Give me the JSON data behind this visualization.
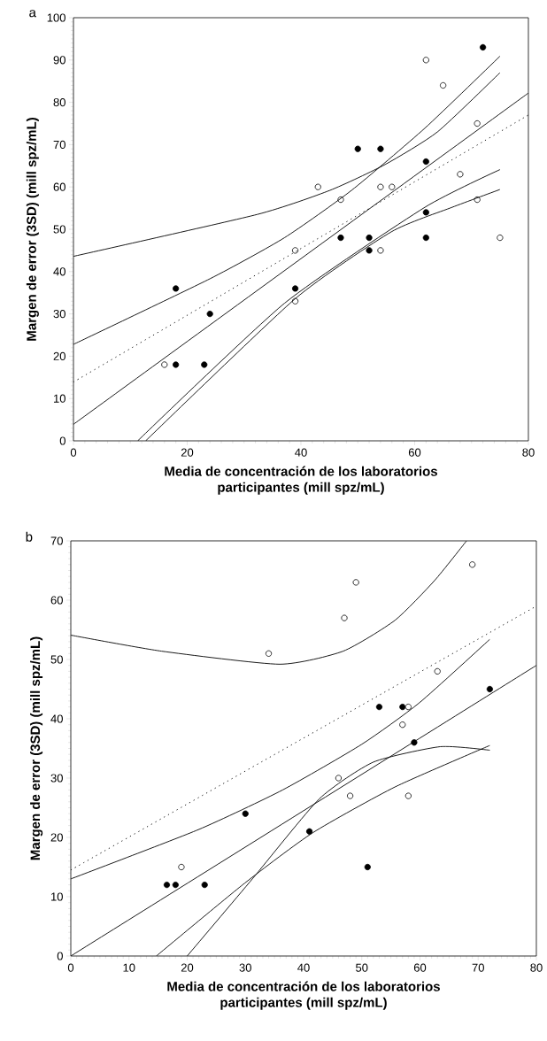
{
  "chart_data": [
    {
      "type": "scatter",
      "annotations": [
        "a"
      ],
      "xlabel": "Media de concentración de los laboratorios participantes (mill spz/mL)",
      "ylabel": "Margen de error (3SD) (mill spz/mL)",
      "xlim": [
        0,
        80
      ],
      "ylim": [
        0,
        100
      ],
      "xticks": [
        0,
        20,
        40,
        60,
        80
      ],
      "yticks": [
        0,
        10,
        20,
        30,
        40,
        50,
        60,
        70,
        80,
        90,
        100
      ],
      "marker": "circle",
      "series": [
        {
          "color": "#000000",
          "x": [
            18,
            18,
            23,
            24,
            39,
            47,
            50,
            52,
            52,
            54,
            62,
            62,
            62,
            72
          ],
          "values": [
            36,
            18,
            18,
            30,
            36,
            48,
            69,
            48,
            45,
            69,
            66,
            54,
            48,
            93
          ]
        },
        {
          "color": "#ffffff",
          "x": [
            16,
            39,
            39,
            43,
            47,
            54,
            54,
            56,
            62,
            65,
            68,
            71,
            71,
            75
          ],
          "values": [
            18,
            33,
            45,
            60,
            57,
            60,
            45,
            60,
            90,
            84,
            63,
            75,
            57,
            48
          ]
        },
        {
          "type": "line",
          "color": "#000000",
          "marker": "none",
          "line_style": "solid",
          "x": [
            0,
            32.3,
            45.1,
            54.8,
            64,
            75
          ],
          "values": [
            43.6,
            53.5,
            59.2,
            65.3,
            73,
            87
          ]
        },
        {
          "type": "line",
          "color": "#000000",
          "marker": "none",
          "line_style": "solid",
          "x": [
            0,
            24,
            37.1,
            48.9,
            61.8,
            75
          ],
          "values": [
            22.8,
            38.3,
            48,
            59.2,
            73.9,
            90.9
          ]
        },
        {
          "type": "line",
          "color": "#000000",
          "marker": "none",
          "line_style": "solid",
          "x": [
            0,
            80
          ],
          "values": [
            3.9,
            82.2
          ]
        },
        {
          "type": "line",
          "color": "#000000",
          "marker": "none",
          "line_style": "dotted",
          "x": [
            0,
            80
          ],
          "values": [
            13.9,
            77
          ]
        },
        {
          "type": "line",
          "color": "#000000",
          "marker": "none",
          "line_style": "solid",
          "x": [
            11.3,
            37.1,
            61.8,
            75
          ],
          "values": [
            0,
            32.5,
            55.2,
            64.1
          ]
        },
        {
          "type": "line",
          "color": "#000000",
          "marker": "none",
          "line_style": "solid",
          "x": [
            12.7,
            39,
            55.9,
            66.6,
            75
          ],
          "values": [
            0,
            33.6,
            49.4,
            55.2,
            59.4
          ]
        }
      ]
    },
    {
      "type": "scatter",
      "annotations": [
        "b"
      ],
      "xlabel": "Media de concentración de los laboratorios participantes (mill spz/mL)",
      "ylabel": "Margen de error (3SD) (mill spz/mL)",
      "xlim": [
        0,
        80
      ],
      "ylim": [
        0,
        70
      ],
      "xticks": [
        0,
        10,
        20,
        30,
        40,
        50,
        60,
        70,
        80
      ],
      "yticks": [
        0,
        10,
        20,
        30,
        40,
        50,
        60,
        70
      ],
      "marker": "circle",
      "series": [
        {
          "color": "#000000",
          "x": [
            16.5,
            18,
            23,
            30,
            41,
            51,
            53,
            57,
            59,
            72
          ],
          "values": [
            12,
            12,
            12,
            24,
            21,
            15,
            42,
            42,
            36,
            45
          ]
        },
        {
          "color": "#ffffff",
          "x": [
            19,
            34,
            46,
            47,
            48,
            49,
            57,
            58,
            58,
            63,
            69
          ],
          "values": [
            15,
            51,
            30,
            57,
            27,
            63,
            39,
            42,
            27,
            48,
            66
          ]
        },
        {
          "type": "line",
          "color": "#000000",
          "marker": "none",
          "line_style": "solid",
          "x": [
            0,
            15.6,
            35.9,
            46.8,
            55.7,
            62.5,
            68
          ],
          "values": [
            54.1,
            51.4,
            49.2,
            51.4,
            56.6,
            63.3,
            70
          ]
        },
        {
          "type": "line",
          "color": "#000000",
          "marker": "none",
          "line_style": "dotted",
          "x": [
            0,
            80
          ],
          "values": [
            14.5,
            59
          ]
        },
        {
          "type": "line",
          "color": "#000000",
          "marker": "none",
          "line_style": "solid",
          "x": [
            0,
            21.9,
            36.4,
            50,
            59.9,
            72
          ],
          "values": [
            13,
            21.3,
            28,
            35.7,
            42.7,
            53.4
          ]
        },
        {
          "type": "line",
          "color": "#000000",
          "marker": "none",
          "line_style": "solid",
          "x": [
            0,
            80
          ],
          "values": [
            0,
            49
          ]
        },
        {
          "type": "line",
          "color": "#000000",
          "marker": "none",
          "line_style": "solid",
          "x": [
            20,
            31.2,
            42.7,
            52,
            63.5,
            72
          ],
          "values": [
            0,
            13,
            26.5,
            32.7,
            35.3,
            34.7
          ]
        },
        {
          "type": "line",
          "color": "#000000",
          "marker": "none",
          "line_style": "solid",
          "x": [
            14.7,
            29.9,
            41.6,
            55.7,
            72
          ],
          "values": [
            0,
            12.3,
            20.8,
            28.5,
            35.5
          ]
        }
      ]
    }
  ]
}
